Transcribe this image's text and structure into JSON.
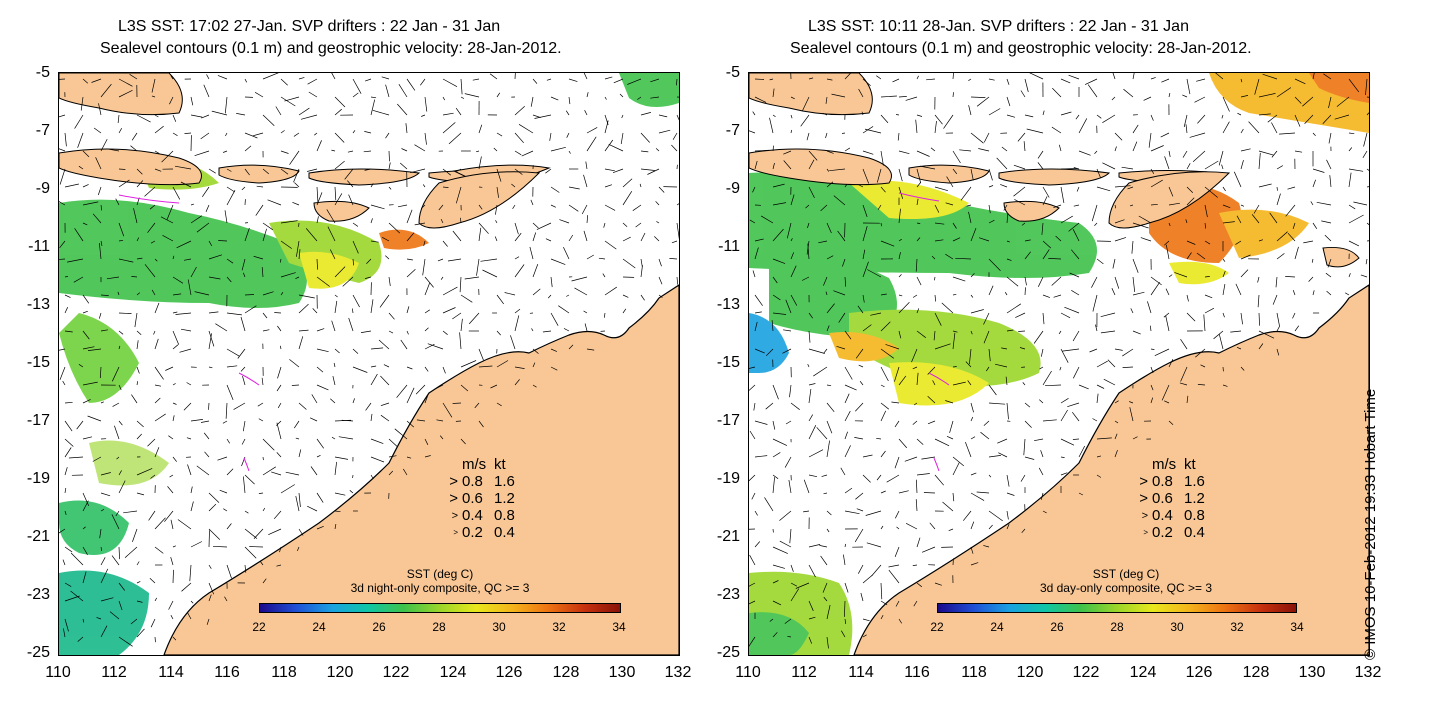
{
  "panels": [
    {
      "title_line1": "L3S SST: 17:02 27-Jan. SVP drifters : 22 Jan - 31 Jan",
      "title_line2": "Sealevel contours (0.1 m) and geostrophic velocity: 28-Jan-2012.",
      "sst_title": "SST (deg C)",
      "sst_subtitle": "3d night-only composite, QC >= 3"
    },
    {
      "title_line1": "L3S SST: 10:11 28-Jan. SVP drifters : 22 Jan - 31 Jan",
      "title_line2": "Sealevel contours (0.1 m) and geostrophic velocity: 28-Jan-2012.",
      "sst_title": "SST (deg C)",
      "sst_subtitle": "3d day-only composite, QC >= 3"
    }
  ],
  "axes": {
    "x_ticks": [
      "110",
      "112",
      "114",
      "116",
      "118",
      "120",
      "122",
      "124",
      "126",
      "128",
      "130",
      "132"
    ],
    "y_ticks": [
      "-5",
      "-7",
      "-9",
      "-11",
      "-13",
      "-15",
      "-17",
      "-19",
      "-21",
      "-23",
      "-25"
    ]
  },
  "velocity_legend": {
    "header_ms": "m/s",
    "header_kt": "kt",
    "rows": [
      {
        "ms": "0.8",
        "kt": "1.6"
      },
      {
        "ms": "0.6",
        "kt": "1.2"
      },
      {
        "ms": "0.4",
        "kt": "0.8"
      },
      {
        "ms": "0.2",
        "kt": "0.4"
      }
    ]
  },
  "colorbar_ticks": [
    "22",
    "24",
    "26",
    "28",
    "30",
    "32",
    "34"
  ],
  "colors": {
    "land": "#f9c795",
    "sst_warm": "#f4b51c",
    "sst_green": "#3fc24a",
    "coast": "#000000"
  },
  "credit": "© IMOS 10-Feb-2012 19:33 Hobart Time"
}
